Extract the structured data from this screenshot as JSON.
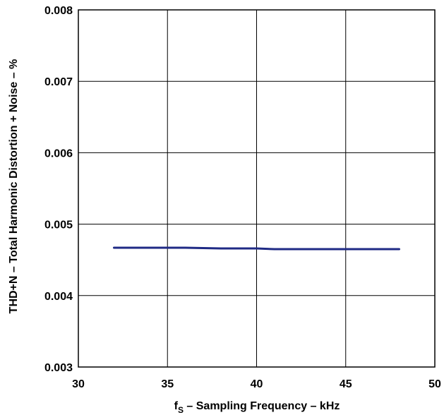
{
  "chart_data": {
    "type": "line",
    "xlabel": {
      "main": "f",
      "sub": "S",
      "rest": " – Sampling Frequency – kHz"
    },
    "ylabel": "THD+N – Total Harmonic Distortion + Noise – %",
    "xlim": [
      30,
      50
    ],
    "ylim": [
      0.003,
      0.008
    ],
    "x_ticks": [
      "30",
      "35",
      "40",
      "45",
      "50"
    ],
    "y_ticks": [
      "0.003",
      "0.004",
      "0.005",
      "0.006",
      "0.007",
      "0.008"
    ],
    "grid": true,
    "series": [
      {
        "color": "#1f2a85",
        "x": [
          32,
          34,
          36,
          38,
          40,
          41,
          42,
          44,
          46,
          48
        ],
        "y": [
          0.00467,
          0.00467,
          0.00467,
          0.00466,
          0.00466,
          0.00465,
          0.00465,
          0.00465,
          0.00465,
          0.00465
        ]
      }
    ]
  }
}
